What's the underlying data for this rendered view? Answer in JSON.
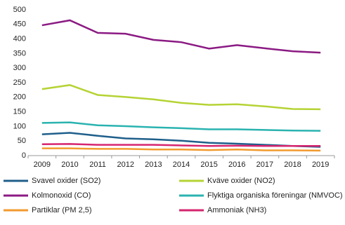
{
  "chart_data": {
    "type": "line",
    "categories": [
      "2009",
      "2010",
      "2011",
      "2012",
      "2013",
      "2014",
      "2015",
      "2016",
      "2017",
      "2018",
      "2019"
    ],
    "ylim": [
      0,
      500
    ],
    "yticks": [
      0,
      50,
      100,
      150,
      200,
      250,
      300,
      350,
      400,
      450,
      500
    ],
    "grid": false,
    "legend": "bottom",
    "series": [
      {
        "name": "Svavel oxider (SO2)",
        "color": "#1f5f8b",
        "values": [
          73,
          78,
          68,
          59,
          56,
          51,
          44,
          41,
          37,
          33,
          30
        ]
      },
      {
        "name": "Kväve oxider (NO2)",
        "color": "#b5d334",
        "values": [
          228,
          242,
          208,
          201,
          193,
          181,
          174,
          176,
          169,
          160,
          159
        ]
      },
      {
        "name": "Kolmonoxid (CO)",
        "color": "#8b1a83",
        "values": [
          447,
          464,
          421,
          418,
          397,
          389,
          367,
          379,
          368,
          358,
          353
        ]
      },
      {
        "name": "Flyktiga organiska föreningar (NMVOC)",
        "color": "#2ab3b0",
        "values": [
          112,
          114,
          104,
          101,
          97,
          94,
          90,
          90,
          88,
          86,
          85
        ]
      },
      {
        "name": "Partiklar (PM 2,5)",
        "color": "#f29a2e",
        "values": [
          25,
          25,
          23,
          23,
          21,
          21,
          19,
          21,
          18,
          18,
          17
        ]
      },
      {
        "name": "Ammoniak (NH3)",
        "color": "#d6256f",
        "values": [
          39,
          40,
          37,
          37,
          37,
          35,
          33,
          34,
          33,
          33,
          33
        ]
      }
    ]
  }
}
